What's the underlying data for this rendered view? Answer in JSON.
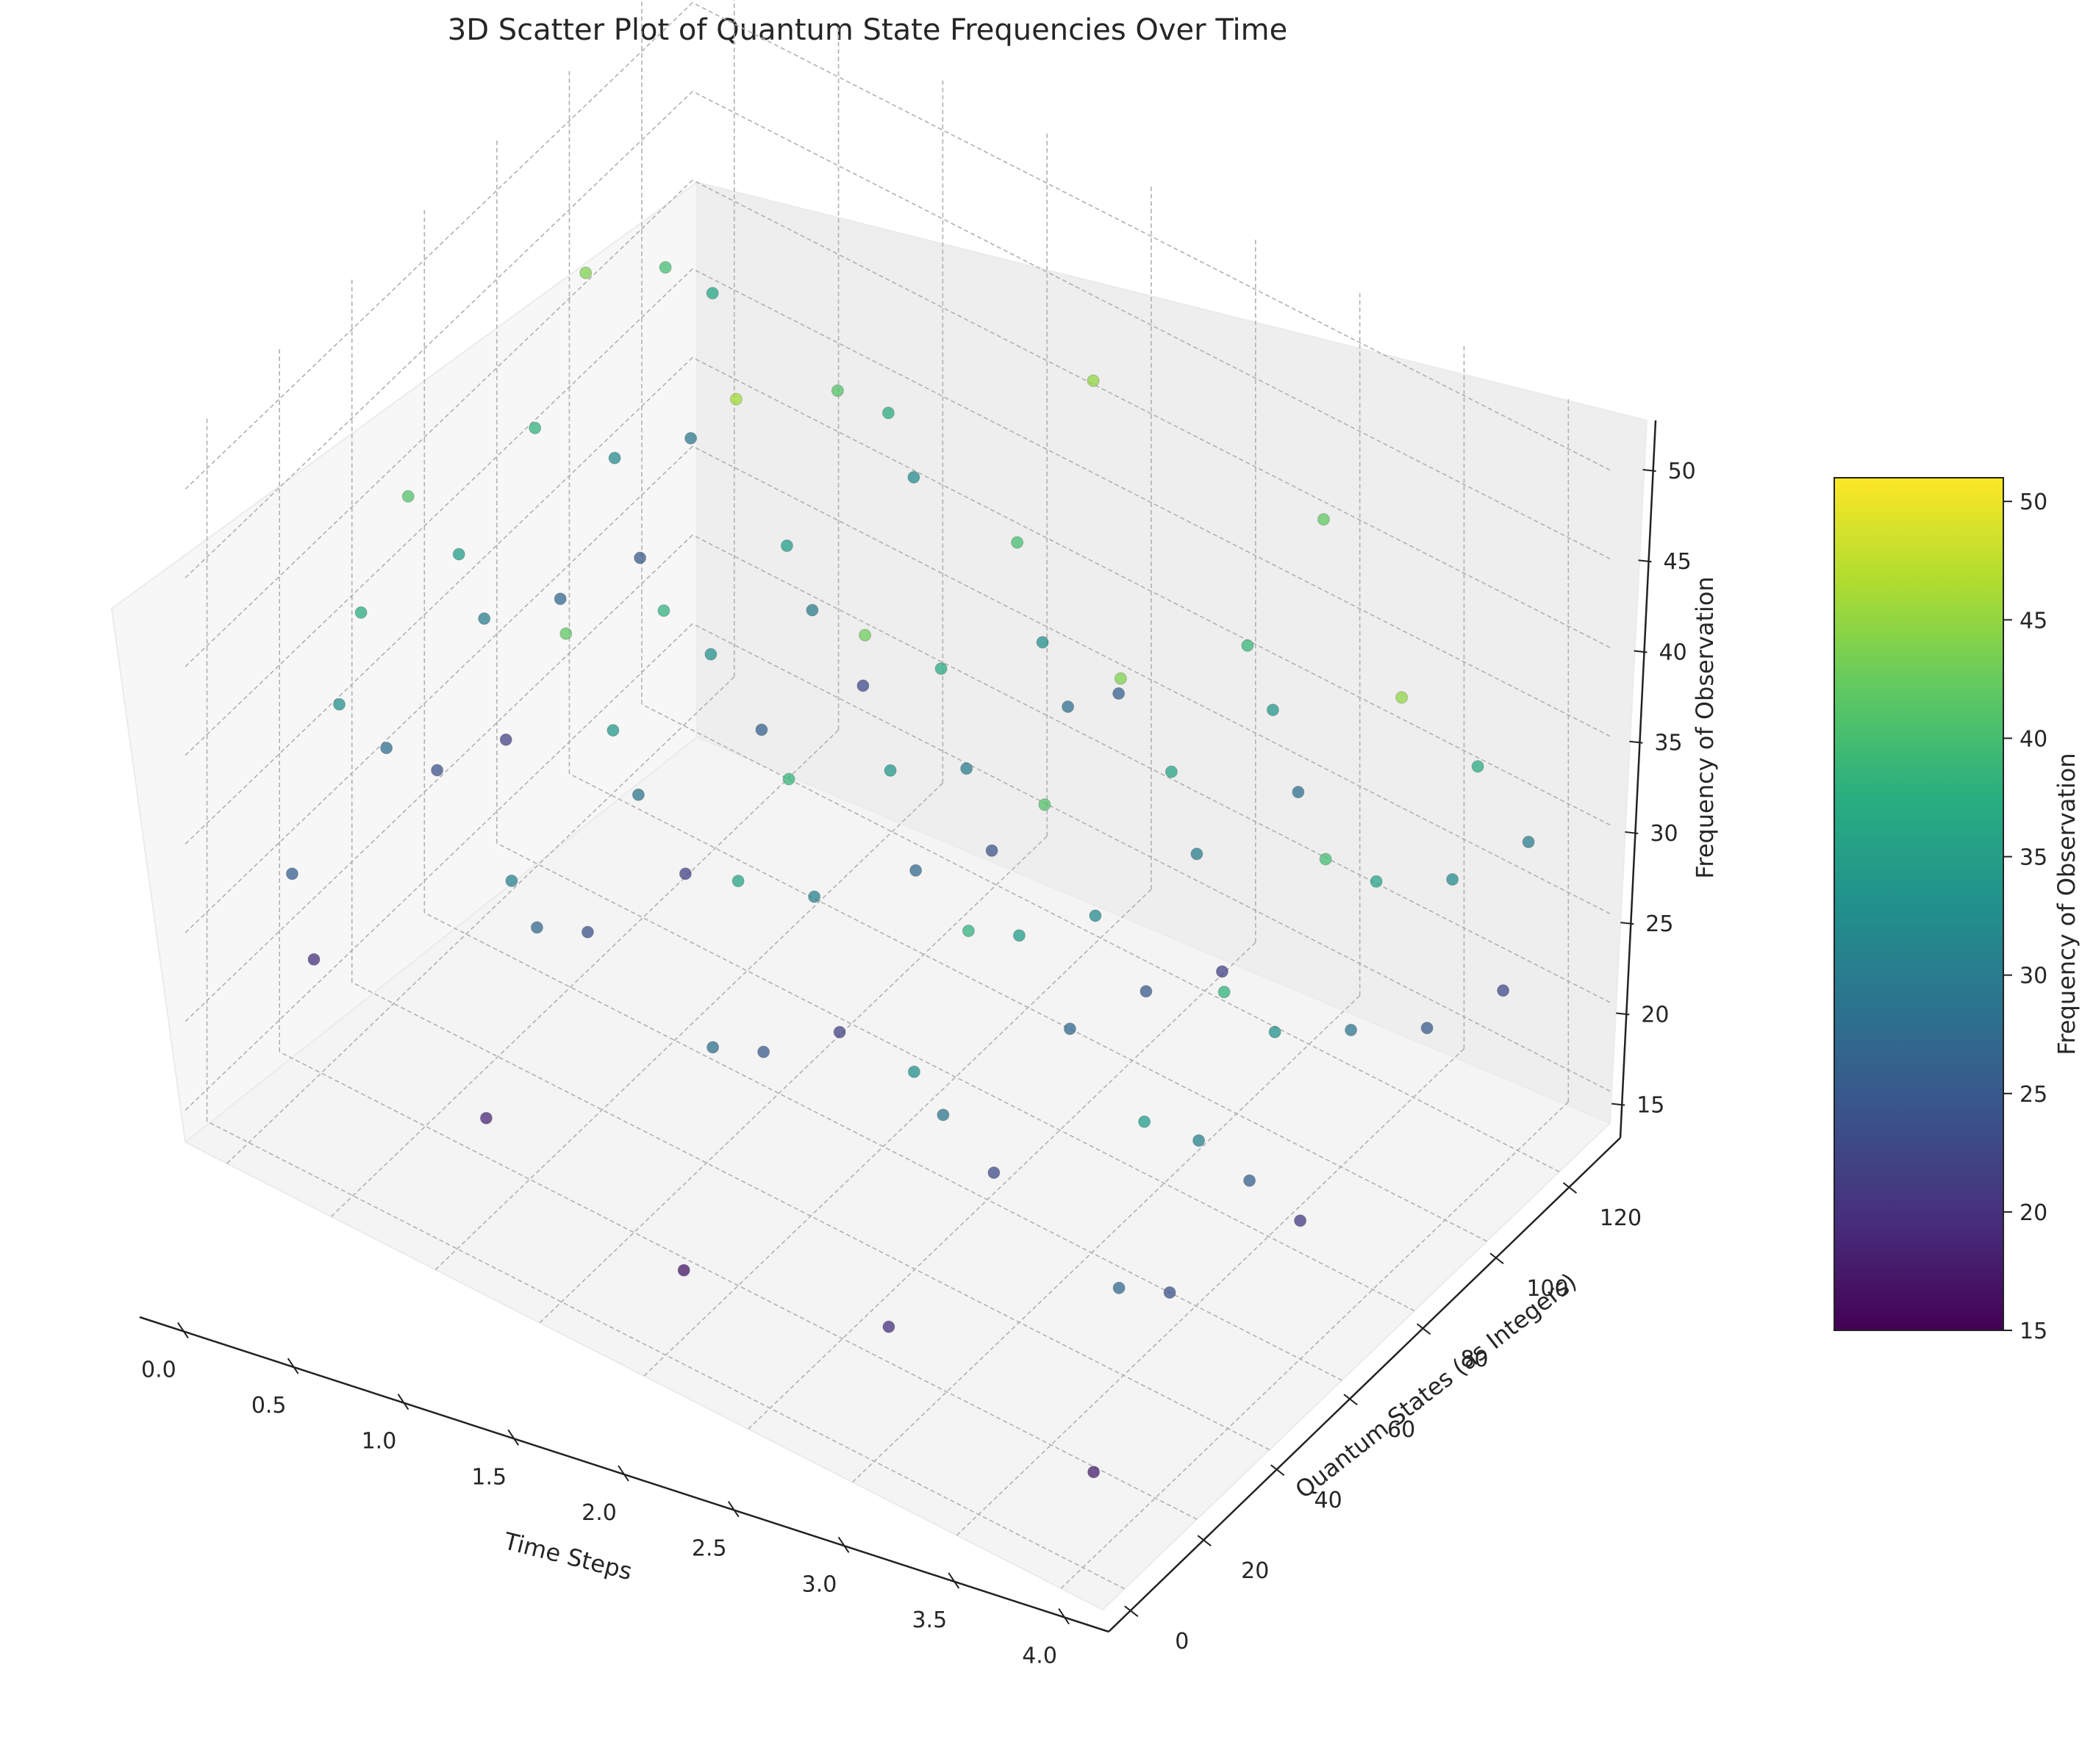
{
  "chart_data": {
    "type": "scatter",
    "title": "3D Scatter Plot of Quantum State Frequencies Over Time",
    "xlabel": "Time Steps",
    "ylabel": "Quantum States (as Integers)",
    "zlabel": "Frequency of Observation",
    "colorbar_label": "Frequency of Observation",
    "colormap": "viridis",
    "xlim": [
      -0.2,
      4.2
    ],
    "ylim": [
      -6,
      134
    ],
    "zlim": [
      13.2,
      52.8
    ],
    "x_ticks": [
      "0.0",
      "0.5",
      "1.0",
      "1.5",
      "2.0",
      "2.5",
      "3.0",
      "3.5",
      "4.0"
    ],
    "y_ticks": [
      "0",
      "20",
      "40",
      "60",
      "80",
      "100",
      "120"
    ],
    "z_ticks": [
      "15",
      "20",
      "25",
      "30",
      "35",
      "40",
      "45",
      "50"
    ],
    "colorbar_ticks": [
      "15",
      "20",
      "25",
      "30",
      "35",
      "40",
      "45",
      "50"
    ],
    "colorbar_range": [
      15,
      51
    ],
    "grid": true,
    "legend": "none",
    "points": [
      {
        "x": 0,
        "y": 12,
        "z": 26
      },
      {
        "x": 0,
        "y": 18,
        "z": 20
      },
      {
        "x": 0,
        "y": 25,
        "z": 33
      },
      {
        "x": 0,
        "y": 31,
        "z": 37
      },
      {
        "x": 0,
        "y": 38,
        "z": 28
      },
      {
        "x": 0,
        "y": 44,
        "z": 41
      },
      {
        "x": 0,
        "y": 52,
        "z": 24
      },
      {
        "x": 0,
        "y": 58,
        "z": 35
      },
      {
        "x": 0,
        "y": 65,
        "z": 30
      },
      {
        "x": 0,
        "y": 71,
        "z": 22
      },
      {
        "x": 0,
        "y": 79,
        "z": 38
      },
      {
        "x": 0,
        "y": 86,
        "z": 27
      },
      {
        "x": 0,
        "y": 93,
        "z": 44
      },
      {
        "x": 0,
        "y": 101,
        "z": 32
      },
      {
        "x": 0,
        "y": 108,
        "z": 25
      },
      {
        "x": 0,
        "y": 115,
        "z": 40
      },
      {
        "x": 0,
        "y": 122,
        "z": 29
      },
      {
        "x": 0,
        "y": 128,
        "z": 36
      },
      {
        "x": 1,
        "y": 8,
        "z": 19
      },
      {
        "x": 1,
        "y": 15,
        "z": 31
      },
      {
        "x": 1,
        "y": 22,
        "z": 27
      },
      {
        "x": 1,
        "y": 30,
        "z": 42
      },
      {
        "x": 1,
        "y": 36,
        "z": 24
      },
      {
        "x": 1,
        "y": 43,
        "z": 34
      },
      {
        "x": 1,
        "y": 50,
        "z": 29
      },
      {
        "x": 1,
        "y": 57,
        "z": 38
      },
      {
        "x": 1,
        "y": 63,
        "z": 22
      },
      {
        "x": 1,
        "y": 70,
        "z": 33
      },
      {
        "x": 1,
        "y": 77,
        "z": 46
      },
      {
        "x": 1,
        "y": 84,
        "z": 26
      },
      {
        "x": 1,
        "y": 91,
        "z": 35
      },
      {
        "x": 1,
        "y": 98,
        "z": 30
      },
      {
        "x": 1,
        "y": 105,
        "z": 41
      },
      {
        "x": 1,
        "y": 112,
        "z": 23
      },
      {
        "x": 1,
        "y": 119,
        "z": 37
      },
      {
        "x": 1,
        "y": 126,
        "z": 32
      },
      {
        "x": 2,
        "y": 5,
        "z": 17
      },
      {
        "x": 2,
        "y": 13,
        "z": 28
      },
      {
        "x": 2,
        "y": 20,
        "z": 36
      },
      {
        "x": 2,
        "y": 27,
        "z": 25
      },
      {
        "x": 2,
        "y": 34,
        "z": 39
      },
      {
        "x": 2,
        "y": 41,
        "z": 31
      },
      {
        "x": 2,
        "y": 48,
        "z": 22
      },
      {
        "x": 2,
        "y": 55,
        "z": 43
      },
      {
        "x": 2,
        "y": 62,
        "z": 34
      },
      {
        "x": 2,
        "y": 69,
        "z": 27
      },
      {
        "x": 2,
        "y": 76,
        "z": 37
      },
      {
        "x": 2,
        "y": 83,
        "z": 30
      },
      {
        "x": 2,
        "y": 90,
        "z": 24
      },
      {
        "x": 2,
        "y": 97,
        "z": 40
      },
      {
        "x": 2,
        "y": 104,
        "z": 33
      },
      {
        "x": 2,
        "y": 111,
        "z": 28
      },
      {
        "x": 2,
        "y": 118,
        "z": 45
      },
      {
        "x": 2,
        "y": 125,
        "z": 26
      },
      {
        "x": 3,
        "y": 4,
        "z": 20
      },
      {
        "x": 3,
        "y": 11,
        "z": 33
      },
      {
        "x": 3,
        "y": 19,
        "z": 29
      },
      {
        "x": 3,
        "y": 26,
        "z": 38
      },
      {
        "x": 3,
        "y": 33,
        "z": 23
      },
      {
        "x": 3,
        "y": 40,
        "z": 35
      },
      {
        "x": 3,
        "y": 47,
        "z": 41
      },
      {
        "x": 3,
        "y": 54,
        "z": 27
      },
      {
        "x": 3,
        "y": 61,
        "z": 32
      },
      {
        "x": 3,
        "y": 68,
        "z": 44
      },
      {
        "x": 3,
        "y": 75,
        "z": 25
      },
      {
        "x": 3,
        "y": 82,
        "z": 36
      },
      {
        "x": 3,
        "y": 89,
        "z": 30
      },
      {
        "x": 3,
        "y": 96,
        "z": 22
      },
      {
        "x": 3,
        "y": 103,
        "z": 39
      },
      {
        "x": 3,
        "y": 110,
        "z": 34
      },
      {
        "x": 3,
        "y": 117,
        "z": 28
      },
      {
        "x": 3,
        "y": 124,
        "z": 42
      },
      {
        "x": 4,
        "y": 3,
        "z": 18
      },
      {
        "x": 4,
        "y": 10,
        "z": 27
      },
      {
        "x": 4,
        "y": 17,
        "z": 35
      },
      {
        "x": 4,
        "y": 24,
        "z": 24
      },
      {
        "x": 4,
        "y": 32,
        "z": 31
      },
      {
        "x": 4,
        "y": 39,
        "z": 38
      },
      {
        "x": 4,
        "y": 46,
        "z": 26
      },
      {
        "x": 4,
        "y": 53,
        "z": 33
      },
      {
        "x": 4,
        "y": 60,
        "z": 21
      },
      {
        "x": 4,
        "y": 67,
        "z": 40
      },
      {
        "x": 4,
        "y": 74,
        "z": 29
      },
      {
        "x": 4,
        "y": 81,
        "z": 36
      },
      {
        "x": 4,
        "y": 88,
        "z": 45
      },
      {
        "x": 4,
        "y": 95,
        "z": 25
      },
      {
        "x": 4,
        "y": 102,
        "z": 32
      },
      {
        "x": 4,
        "y": 109,
        "z": 37
      },
      {
        "x": 4,
        "y": 116,
        "z": 23
      },
      {
        "x": 4,
        "y": 123,
        "z": 30
      }
    ]
  }
}
